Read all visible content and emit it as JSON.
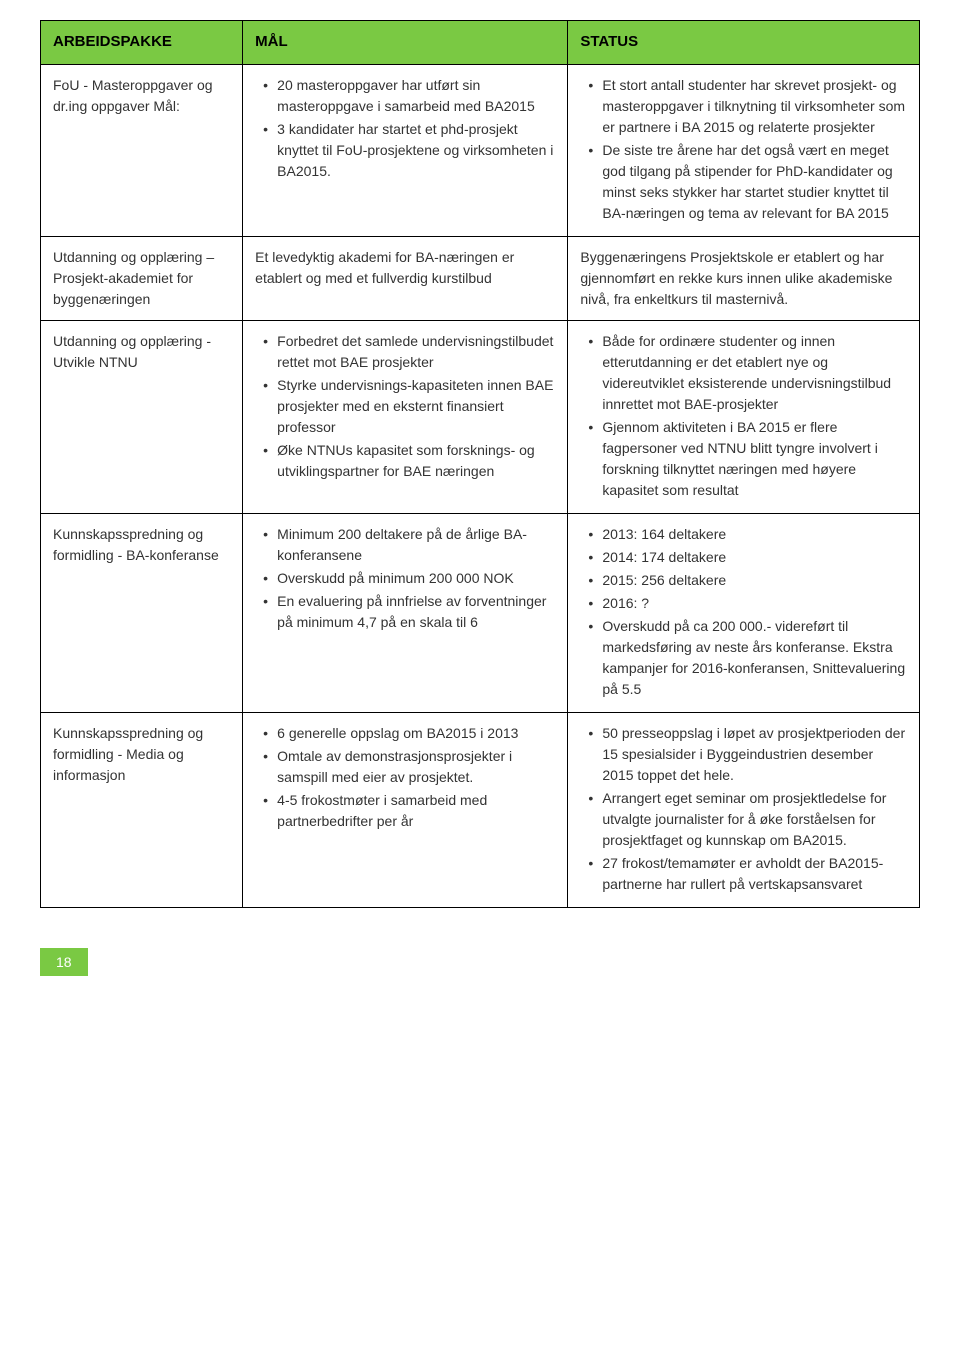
{
  "headers": {
    "col1": "ARBEIDSPAKKE",
    "col2": "MÅL",
    "col3": "STATUS"
  },
  "rows": [
    {
      "wp": "FoU - Masteroppgaver og dr.ing oppgaver Mål:",
      "mal_items": [
        "20 masteroppgaver har utført sin masteroppgave i samarbeid med BA2015",
        "3 kandidater har startet et phd-prosjekt knyttet til FoU-prosjektene og virksomheten i BA2015."
      ],
      "status_items": [
        "Et stort antall studenter har skrevet prosjekt- og masteroppgaver i tilknytning til virksomheter som er partnere i BA 2015 og relaterte prosjekter",
        "De siste tre årene har det også vært en meget god tilgang på stipender for PhD-kandidater og minst seks stykker har startet studier knyttet til BA-næringen og tema av relevant for BA 2015"
      ]
    },
    {
      "wp": "Utdanning og opplæring – Prosjekt-akademiet for byggenæringen",
      "mal_text": "Et levedyktig akademi for BA-næringen er etablert og med et fullverdig kurstilbud",
      "status_text": "Byggenæringens Prosjektskole er etablert og har gjennomført en rekke kurs innen ulike akademiske nivå, fra enkeltkurs til masternivå."
    },
    {
      "wp": "Utdanning og opplæring - Utvikle NTNU",
      "mal_items": [
        "Forbedret det samlede undervisningstilbudet rettet mot BAE prosjekter",
        "Styrke undervisnings-kapasiteten innen BAE prosjekter med en eksternt finansiert professor",
        "Øke NTNUs kapasitet som forsknings- og utviklingspartner for BAE næringen"
      ],
      "status_items": [
        "Både for ordinære studenter og innen etterutdanning er det etablert nye og videreutviklet eksisterende undervisningstilbud innrettet mot BAE-prosjekter",
        "Gjennom aktiviteten i BA 2015 er flere fagpersoner ved NTNU blitt tyngre involvert i forskning tilknyttet næringen med høyere kapasitet som resultat"
      ]
    },
    {
      "wp": "Kunnskapsspredning og formidling - BA-konferanse",
      "mal_items": [
        "Minimum 200 deltakere på de årlige BA-konferansene",
        "Overskudd på minimum 200 000 NOK",
        "En evaluering på innfrielse av forventninger på minimum 4,7 på en skala til 6"
      ],
      "status_items": [
        "2013: 164 deltakere",
        "2014: 174 deltakere",
        "2015: 256 deltakere",
        "2016: ?",
        "Overskudd på ca 200 000.- videreført til markedsføring av neste års konferanse. Ekstra kampanjer for 2016-konferansen, Snittevaluering på 5.5"
      ]
    },
    {
      "wp": "Kunnskapsspredning og formidling - Media og informasjon",
      "mal_items": [
        "6 generelle oppslag om BA2015 i 2013",
        "Omtale av demonstrasjonsprosjekter i samspill med eier av prosjektet.",
        "4-5 frokostmøter i samarbeid med partnerbedrifter per år"
      ],
      "status_items": [
        "50 presseoppslag i løpet av prosjektperioden der 15 spesialsider i Byggeindustrien desember 2015 toppet det hele.",
        "Arrangert eget seminar om prosjektledelse for utvalgte journalister for å øke forståelsen for prosjektfaget og kunnskap om BA2015.",
        "27 frokost/temamøter er avholdt der BA2015-partnerne har rullert på vertskapsansvaret"
      ]
    }
  ],
  "pageNumber": "18",
  "colors": {
    "header_bg": "#7ac943",
    "border": "#000000",
    "text": "#333333",
    "pagenum_bg": "#7ac943",
    "pagenum_text": "#ffffff"
  }
}
